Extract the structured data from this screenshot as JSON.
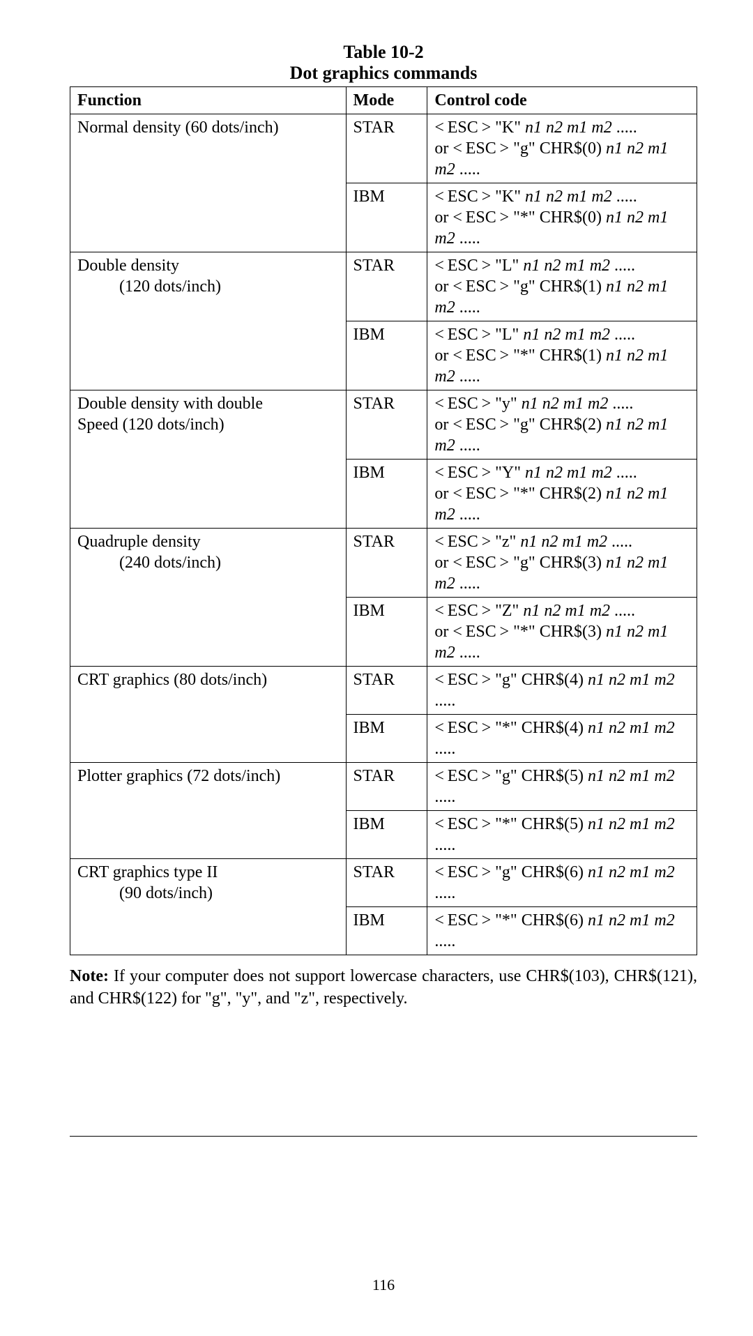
{
  "title_main": "Table 10-2",
  "title_sub": "Dot graphics commands",
  "headers": {
    "c1": "Function",
    "c2": "Mode",
    "c3": "Control code"
  },
  "rows": [
    {
      "func": "Normal density (60 dots/inch)",
      "mode": "STAR",
      "code": "< ESC > \"K\" <i>n1 n2 m1 m2</i> .....\nor < ESC > \"g\" CHR$(0) <i>n1 n2 m1 m2</i> ....."
    },
    {
      "func": "",
      "mode": "IBM",
      "code": "< ESC > \"K\" <i>n1 n2 m1 m2</i> .....\nor < ESC > \"*\" CHR$(0) <i>n1 n2 m1 m2</i> ....."
    },
    {
      "func": "Double density\n\t(120 dots/inch)",
      "mode": "STAR",
      "code": "< ESC > \"L\" <i>n1 n2 m1 m2</i> .....\nor < ESC > \"g\" CHR$(1) <i>n1 n2 m1 m2</i> ....."
    },
    {
      "func": "",
      "mode": "IBM",
      "code": "< ESC > \"L\" <i>n1 n2 m1 m2</i> .....\nor < ESC > \"*\" CHR$(1) <i>n1 n2 m1 m2</i> ....."
    },
    {
      "func": "Double density with double\nSpeed (120 dots/inch)",
      "mode": "STAR",
      "code": "< ESC > \"y\" <i>n1 n2 m1 m2</i> .....\nor < ESC > \"g\" CHR$(2) <i>n1 n2 m1 m2</i> ....."
    },
    {
      "func": "",
      "mode": "IBM",
      "code": "< ESC > \"Y\" <i>n1 n2 m1 m2</i> .....\nor < ESC > \"*\" CHR$(2) <i>n1 n2 m1 m2</i> ....."
    },
    {
      "func": "Quadruple density\n\t(240 dots/inch)",
      "mode": "STAR",
      "code": "< ESC > \"z\" <i>n1 n2 m1 m2</i> .....\nor < ESC > \"g\" CHR$(3) <i>n1 n2 m1 m2</i> ....."
    },
    {
      "func": "",
      "mode": "IBM",
      "code": "< ESC > \"Z\" <i>n1 n2 m1 m2</i> .....\nor < ESC > \"*\" CHR$(3) <i>n1 n2 m1 m2</i> ....."
    },
    {
      "func": "CRT graphics (80 dots/inch)",
      "mode": "STAR",
      "code": "< ESC > \"g\" CHR$(4) <i>n1 n2 m1 m2</i> ....."
    },
    {
      "func": "",
      "mode": "IBM",
      "code": "< ESC > \"*\" CHR$(4) <i>n1 n2 m1 m2</i> ....."
    },
    {
      "func": "Plotter graphics (72 dots/inch)",
      "mode": "STAR",
      "code": "< ESC > \"g\" CHR$(5) <i>n1 n2 m1 m2</i> ....."
    },
    {
      "func": "",
      "mode": "IBM",
      "code": "< ESC > \"*\" CHR$(5) <i>n1 n2 m1 m2</i> ....."
    },
    {
      "func": "CRT graphics type II\n\t(90 dots/inch)",
      "mode": "STAR",
      "code": "< ESC > \"g\" CHR$(6) <i>n1 n2 m1 m2</i> ....."
    },
    {
      "func": "",
      "mode": "IBM",
      "code": "< ESC > \"*\" CHR$(6) <i>n1 n2 m1 m2</i> ....."
    }
  ],
  "note_label": "Note:",
  "note_text": "If your computer does not support lowercase characters, use CHR$(103), CHR$(121), and CHR$(122) for \"g\", \"y\", and \"z\", respectively.",
  "page_num": "116",
  "merge_groups": [
    2,
    2,
    2,
    2,
    2,
    2,
    2
  ]
}
